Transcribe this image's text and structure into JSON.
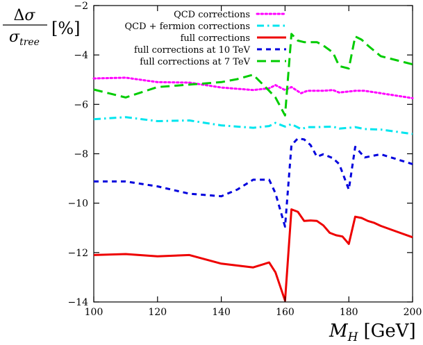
{
  "chart_data": {
    "type": "line",
    "title": "",
    "xlabel": "M_H [GeV]",
    "ylabel": "Δσ/σ_tree [%]",
    "xlim": [
      100,
      200
    ],
    "ylim": [
      -14,
      -2
    ],
    "x_ticks": [
      100,
      120,
      140,
      160,
      180,
      200
    ],
    "y_ticks": [
      -14,
      -12,
      -10,
      -8,
      -6,
      -4,
      -2
    ],
    "grid": false,
    "legend_position": "top-right",
    "series": [
      {
        "name": "QCD corrections",
        "color": "#ff00ff",
        "dash": "dotted",
        "x": [
          100,
          110,
          120,
          130,
          140,
          150,
          155,
          157,
          160,
          162,
          165,
          167,
          170,
          172,
          175,
          177,
          180,
          182,
          185,
          190,
          200
        ],
        "y": [
          -4.95,
          -4.92,
          -5.1,
          -5.12,
          -5.32,
          -5.42,
          -5.35,
          -5.22,
          -5.42,
          -5.3,
          -5.55,
          -5.45,
          -5.45,
          -5.45,
          -5.42,
          -5.52,
          -5.48,
          -5.45,
          -5.45,
          -5.55,
          -5.75
        ]
      },
      {
        "name": "QCD + fermion corrections",
        "color": "#00e5ee",
        "dash": "dashdot",
        "x": [
          100,
          110,
          120,
          130,
          140,
          150,
          155,
          157,
          160,
          162,
          165,
          167,
          170,
          175,
          177,
          180,
          182,
          185,
          190,
          200
        ],
        "y": [
          -6.6,
          -6.52,
          -6.68,
          -6.65,
          -6.85,
          -6.95,
          -6.88,
          -6.75,
          -6.9,
          -6.8,
          -7.0,
          -6.92,
          -6.92,
          -6.9,
          -6.98,
          -6.95,
          -6.92,
          -7.0,
          -7.02,
          -7.2
        ]
      },
      {
        "name": "full corrections",
        "color": "#ee0000",
        "dash": "solid",
        "x": [
          100,
          110,
          120,
          130,
          140,
          150,
          155,
          157,
          160,
          162,
          164,
          166,
          168,
          170,
          172,
          174,
          176,
          178,
          180,
          182,
          184,
          186,
          188,
          190,
          195,
          200
        ],
        "y": [
          -12.1,
          -12.06,
          -12.15,
          -12.1,
          -12.45,
          -12.6,
          -12.4,
          -12.8,
          -13.95,
          -10.25,
          -10.35,
          -10.72,
          -10.7,
          -10.72,
          -10.9,
          -11.2,
          -11.3,
          -11.35,
          -11.65,
          -10.55,
          -10.6,
          -10.72,
          -10.8,
          -10.92,
          -11.15,
          -11.38
        ]
      },
      {
        "name": "full corrections at 10 TeV",
        "color": "#0000dd",
        "dash": "dashed",
        "x": [
          100,
          110,
          120,
          130,
          140,
          145,
          150,
          155,
          157,
          160,
          162,
          164,
          166,
          168,
          170,
          172,
          175,
          177,
          180,
          182,
          185,
          190,
          200
        ],
        "y": [
          -9.12,
          -9.12,
          -9.32,
          -9.62,
          -9.72,
          -9.45,
          -9.05,
          -9.05,
          -9.6,
          -10.95,
          -7.65,
          -7.38,
          -7.42,
          -7.65,
          -8.12,
          -8.02,
          -8.18,
          -8.42,
          -9.45,
          -7.72,
          -8.15,
          -8.02,
          -8.42
        ]
      },
      {
        "name": "full corrections at 7 TeV",
        "color": "#00cc00",
        "dash": "longdash",
        "x": [
          100,
          110,
          120,
          130,
          140,
          145,
          150,
          155,
          157,
          160,
          162,
          164,
          166,
          168,
          170,
          172,
          175,
          177,
          180,
          182,
          184,
          186,
          190,
          200
        ],
        "y": [
          -5.4,
          -5.72,
          -5.3,
          -5.2,
          -5.1,
          -4.98,
          -4.8,
          -5.45,
          -5.72,
          -6.45,
          -3.15,
          -3.42,
          -3.48,
          -3.48,
          -3.48,
          -3.62,
          -3.9,
          -4.45,
          -4.55,
          -3.25,
          -3.38,
          -3.62,
          -4.05,
          -4.38
        ]
      }
    ]
  }
}
